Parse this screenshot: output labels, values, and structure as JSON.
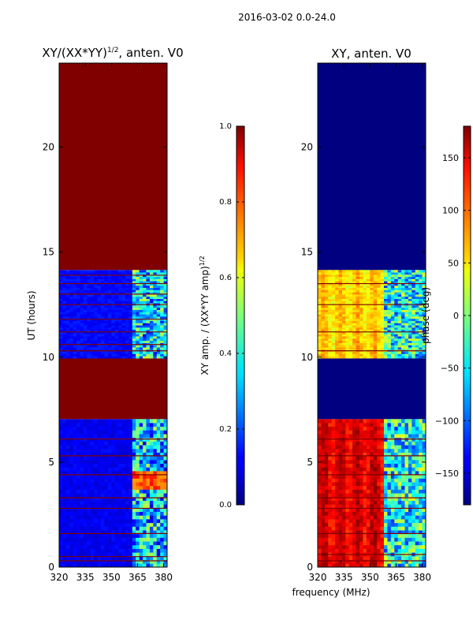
{
  "figure_title": "2016-03-02 0.0-24.0",
  "xlabel": "frequency (MHz)",
  "chart_data": [
    {
      "type": "heatmap",
      "title": "XY/(XX*YY)",
      "title_exp": "1/2",
      "title_suffix": ", anten. V0",
      "xlabel": "",
      "ylabel": "UT (hours)",
      "xlim": [
        320,
        382
      ],
      "ylim": [
        0,
        24
      ],
      "xticks": [
        320,
        335,
        350,
        365,
        380
      ],
      "yticks": [
        0,
        5,
        10,
        15,
        20
      ],
      "colormap": "jet",
      "colorbar": {
        "label": "XY amp. / (XX*YY amp)",
        "label_exp": "1/2",
        "range": [
          0.0,
          1.0
        ],
        "ticks": [
          "0.0",
          "0.2",
          "0.4",
          "0.6",
          "0.8",
          "1.0"
        ],
        "tick_values": [
          0.0,
          0.2,
          0.4,
          0.6,
          0.8,
          1.0
        ]
      },
      "segments": [
        {
          "t0": 0.0,
          "t1": 7.05,
          "state": "data",
          "base": 0.08
        },
        {
          "t0": 7.05,
          "t1": 9.95,
          "state": "flagged",
          "value": 1.0
        },
        {
          "t0": 9.95,
          "t1": 14.15,
          "state": "data",
          "base": 0.1
        },
        {
          "t0": 14.15,
          "t1": 24.0,
          "state": "flagged",
          "value": 1.0
        }
      ],
      "flag_lines": [
        0.3,
        0.5,
        1.6,
        2.8,
        3.3,
        4.4,
        5.3,
        6.1,
        10.3,
        10.6,
        11.2,
        11.8,
        12.5,
        13.0,
        13.5,
        13.9
      ],
      "hot_band": {
        "f0": 361,
        "f1": 381,
        "t0": 3.6,
        "t1": 4.5,
        "value": 0.72
      },
      "band_activity": {
        "f0": 362,
        "f1": 381,
        "value": 0.3
      }
    },
    {
      "type": "heatmap",
      "title": "XY, anten. V0",
      "xlabel": "",
      "ylabel": "",
      "xlim": [
        320,
        382
      ],
      "ylim": [
        0,
        24
      ],
      "xticks": [
        320,
        335,
        350,
        365,
        380
      ],
      "yticks": [
        0,
        5,
        10,
        15,
        20
      ],
      "colormap": "jet",
      "colorbar": {
        "label": "phase (deg)",
        "range": [
          -180,
          180
        ],
        "ticks": [
          "150",
          "100",
          "50",
          "0",
          "−50",
          "−100",
          "−150"
        ],
        "tick_values": [
          150,
          100,
          50,
          0,
          -50,
          -100,
          -150
        ]
      },
      "segments": [
        {
          "t0": 0.0,
          "t1": 7.05,
          "state": "data",
          "base": 145
        },
        {
          "t0": 7.05,
          "t1": 9.95,
          "state": "flagged",
          "value": -180
        },
        {
          "t0": 9.95,
          "t1": 14.15,
          "state": "data",
          "base": 60
        },
        {
          "t0": 14.15,
          "t1": 24.0,
          "state": "flagged",
          "value": -180
        }
      ],
      "flag_lines": [
        0.3,
        0.6,
        1.6,
        2.8,
        3.3,
        4.4,
        5.3,
        6.1,
        10.3,
        11.2,
        12.5,
        13.5
      ],
      "band_activity": {
        "f0": 358,
        "f1": 382,
        "value": -40
      }
    }
  ]
}
